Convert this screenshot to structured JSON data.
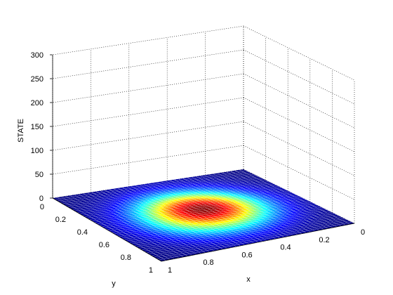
{
  "chart_data": {
    "type": "surface",
    "description_free": true,
    "title": "",
    "xlabel": "x",
    "ylabel": "y",
    "zlabel": "STATE",
    "xlim": [
      0,
      1
    ],
    "ylim": [
      0,
      1
    ],
    "zlim": [
      0,
      300
    ],
    "x_ticks": [
      0,
      0.2,
      0.4,
      0.6,
      0.8,
      1
    ],
    "x_tick_labels": [
      "0",
      "0.2",
      "0.4",
      "0.6",
      "0.8",
      "1"
    ],
    "y_ticks": [
      0,
      0.2,
      0.4,
      0.6,
      0.8,
      1
    ],
    "y_tick_labels": [
      "0",
      "0.2",
      "0.4",
      "0.6",
      "0.8",
      "1"
    ],
    "z_ticks": [
      0,
      50,
      100,
      150,
      200,
      250,
      300
    ],
    "z_tick_labels": [
      "0",
      "50",
      "100",
      "150",
      "200",
      "250",
      "300"
    ],
    "grid": true,
    "colormap": "jet",
    "surface_peak_approx": 8,
    "surface_peak_location": [
      0.5,
      0.5
    ]
  }
}
